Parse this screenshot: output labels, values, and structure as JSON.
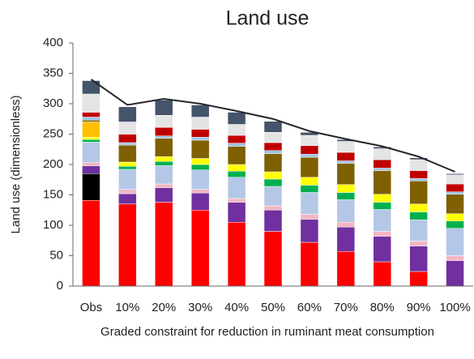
{
  "chart_data": {
    "type": "bar",
    "stacked": true,
    "title": "Land use",
    "y_label": "Land use (dimensionless)",
    "x_label": "Graded constraint for reduction in ruminant meat consumption",
    "categories": [
      "Obs",
      "10%",
      "20%",
      "30%",
      "40%",
      "50%",
      "60%",
      "70%",
      "80%",
      "90%",
      "100%"
    ],
    "ylim": [
      0,
      400
    ],
    "yticks": [
      0,
      50,
      100,
      150,
      200,
      250,
      300,
      350,
      400
    ],
    "series": [
      {
        "color": "#ff0000",
        "values": [
          141,
          135,
          138,
          125,
          105,
          90,
          72,
          57,
          40,
          24,
          0
        ]
      },
      {
        "color": "#000000",
        "values": [
          44,
          null,
          null,
          null,
          null,
          null,
          null,
          null,
          null,
          null,
          null
        ]
      },
      {
        "color": "#7030a0",
        "values": [
          13,
          17,
          24,
          28,
          33,
          35,
          38,
          40,
          42,
          42,
          42
        ]
      },
      {
        "color": "#f4b6c2",
        "values": [
          5,
          7,
          6,
          6,
          6,
          7,
          8,
          8,
          8,
          8,
          8
        ]
      },
      {
        "color": "#b4c7e7",
        "values": [
          34,
          33,
          30,
          32,
          35,
          32,
          36,
          37,
          36,
          35,
          45
        ]
      },
      {
        "color": "#00b050",
        "values": [
          4,
          5,
          7,
          9,
          10,
          12,
          12,
          12,
          12,
          13,
          12
        ]
      },
      {
        "color": "#ffff00",
        "values": [
          4,
          7,
          8,
          10,
          11,
          12,
          13,
          13,
          13,
          13,
          12
        ]
      },
      {
        "color": "#ffc000",
        "values": [
          25,
          null,
          null,
          null,
          null,
          null,
          null,
          null,
          null,
          null,
          null
        ]
      },
      {
        "color": "#7f6000",
        "values": [
          3,
          28,
          30,
          30,
          30,
          30,
          33,
          35,
          39,
          38,
          32
        ]
      },
      {
        "color": "#9dc3e6",
        "values": [
          5,
          4,
          4,
          5,
          5,
          5,
          5,
          4,
          4,
          4,
          4
        ]
      },
      {
        "color": "#c00000",
        "values": [
          8,
          14,
          14,
          13,
          13,
          13,
          14,
          14,
          14,
          13,
          13
        ]
      },
      {
        "color": "#e4e4e4",
        "values": [
          30,
          20,
          20,
          20,
          18,
          17,
          17,
          18,
          18,
          18,
          15
        ]
      },
      {
        "color": "#44546a",
        "values": [
          22,
          25,
          25,
          20,
          20,
          18,
          5,
          3,
          3,
          3,
          2
        ]
      }
    ],
    "total": {
      "color": "#262626",
      "values": [
        340,
        298,
        308,
        300,
        288,
        275,
        255,
        242,
        230,
        213,
        188
      ]
    }
  }
}
